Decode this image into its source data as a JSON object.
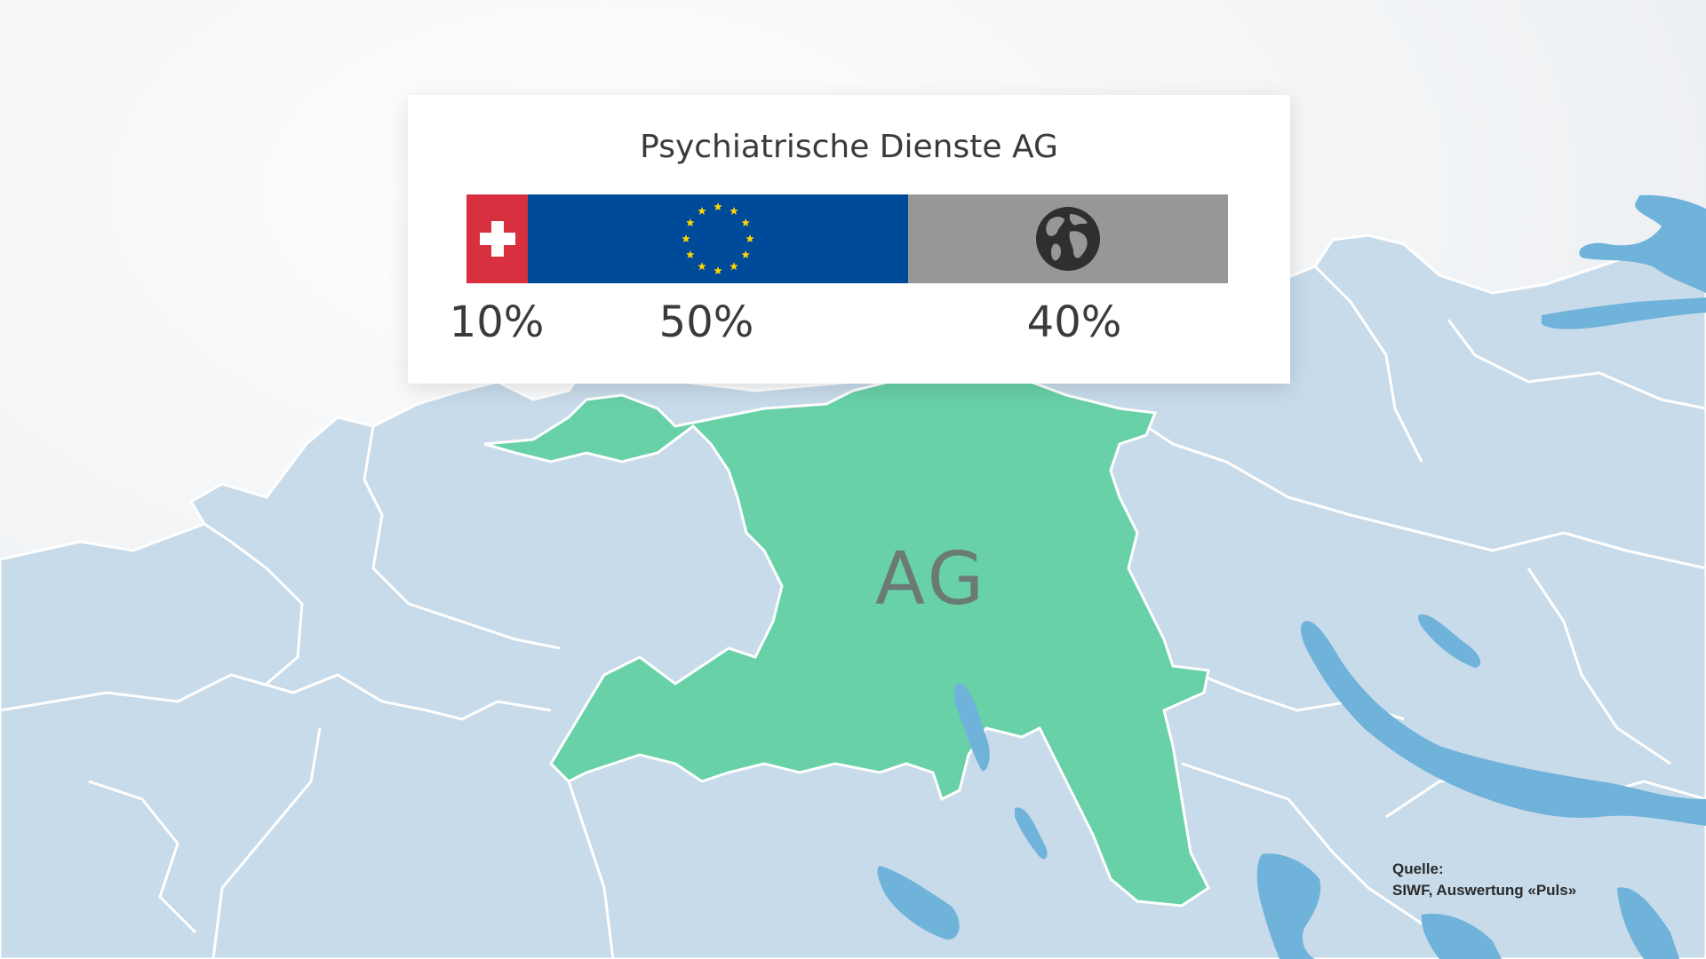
{
  "card": {
    "title": "Psychiatrische Dienste AG",
    "segments": [
      {
        "key": "switzerland",
        "value": 0.1,
        "label": "10%",
        "color": "#d8303f",
        "icon": "swiss-cross-icon"
      },
      {
        "key": "eu",
        "value": 0.5,
        "label": "50%",
        "color": "#004b99",
        "icon": "eu-stars-icon"
      },
      {
        "key": "world",
        "value": 0.4,
        "label": "40%",
        "color": "#979797",
        "icon": "globe-icon"
      }
    ]
  },
  "map": {
    "highlighted_canton": "AG",
    "highlight_color": "#68d1a7",
    "land_color": "#c8dbea",
    "water_color": "#6fb2da"
  },
  "source": {
    "heading": "Quelle:",
    "text": "SIWF, Auswertung «Puls»"
  }
}
